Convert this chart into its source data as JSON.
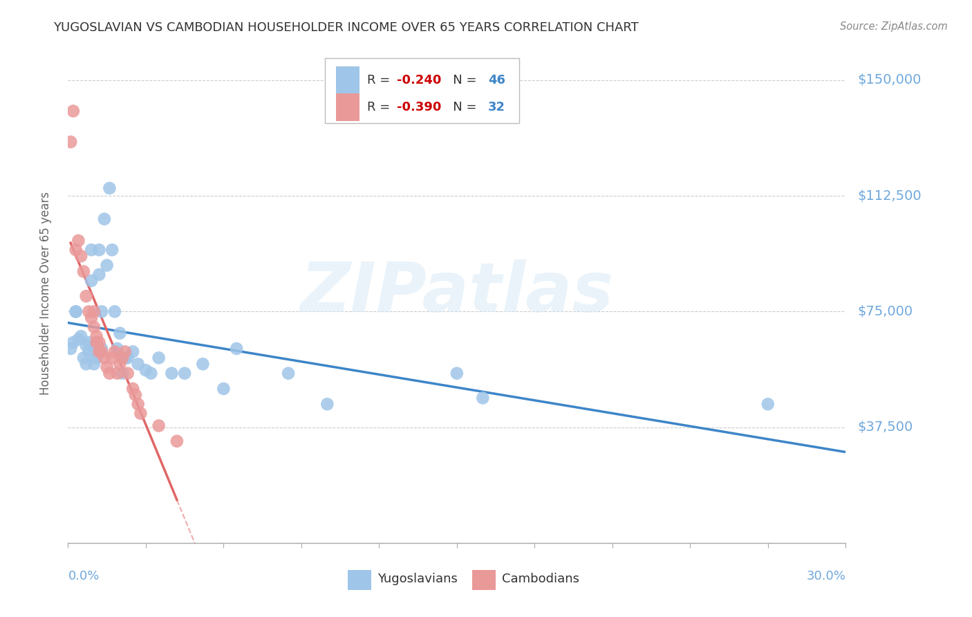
{
  "title": "YUGOSLAVIAN VS CAMBODIAN HOUSEHOLDER INCOME OVER 65 YEARS CORRELATION CHART",
  "source": "Source: ZipAtlas.com",
  "ylabel": "Householder Income Over 65 years",
  "ylim": [
    0,
    162000
  ],
  "xlim": [
    0.0,
    0.3
  ],
  "yticks": [
    0,
    37500,
    75000,
    112500,
    150000
  ],
  "ytick_labels": [
    "",
    "$37,500",
    "$75,000",
    "$112,500",
    "$150,000"
  ],
  "yug_color": "#9fc5e8",
  "cam_color": "#ea9999",
  "yug_line_color": "#3d85c8",
  "cam_line_color": "#e06666",
  "legend_R_yug": "-0.240",
  "legend_N_yug": "46",
  "legend_R_cam": "-0.390",
  "legend_N_cam": "32",
  "watermark_text": "ZIPatlas",
  "background_color": "#ffffff",
  "grid_color": "#cccccc",
  "axis_label_color": "#6fa8dc",
  "title_color": "#333333",
  "source_color": "#888888",
  "yug_x": [
    0.001,
    0.002,
    0.003,
    0.004,
    0.005,
    0.006,
    0.007,
    0.007,
    0.008,
    0.008,
    0.009,
    0.009,
    0.01,
    0.01,
    0.011,
    0.011,
    0.012,
    0.012,
    0.013,
    0.013,
    0.014,
    0.015,
    0.016,
    0.017,
    0.018,
    0.019,
    0.02,
    0.021,
    0.022,
    0.023,
    0.025,
    0.027,
    0.03,
    0.032,
    0.035,
    0.04,
    0.045,
    0.052,
    0.06,
    0.065,
    0.085,
    0.1,
    0.15,
    0.16,
    0.27,
    0.003
  ],
  "yug_y": [
    63000,
    65000,
    75000,
    66000,
    67000,
    60000,
    64000,
    58000,
    62000,
    65000,
    95000,
    85000,
    62000,
    58000,
    65000,
    60000,
    87000,
    95000,
    75000,
    63000,
    105000,
    90000,
    115000,
    95000,
    75000,
    63000,
    68000,
    55000,
    60000,
    60000,
    62000,
    58000,
    56000,
    55000,
    60000,
    55000,
    55000,
    58000,
    50000,
    63000,
    55000,
    45000,
    55000,
    47000,
    45000,
    75000
  ],
  "cam_x": [
    0.001,
    0.002,
    0.003,
    0.004,
    0.005,
    0.006,
    0.007,
    0.008,
    0.009,
    0.01,
    0.01,
    0.011,
    0.011,
    0.012,
    0.012,
    0.013,
    0.014,
    0.015,
    0.016,
    0.017,
    0.018,
    0.019,
    0.02,
    0.021,
    0.022,
    0.023,
    0.025,
    0.026,
    0.027,
    0.028,
    0.035,
    0.042
  ],
  "cam_y": [
    130000,
    140000,
    95000,
    98000,
    93000,
    88000,
    80000,
    75000,
    73000,
    70000,
    75000,
    65000,
    67000,
    65000,
    62000,
    62000,
    60000,
    57000,
    55000,
    60000,
    62000,
    55000,
    58000,
    60000,
    62000,
    55000,
    50000,
    48000,
    45000,
    42000,
    38000,
    33000
  ]
}
